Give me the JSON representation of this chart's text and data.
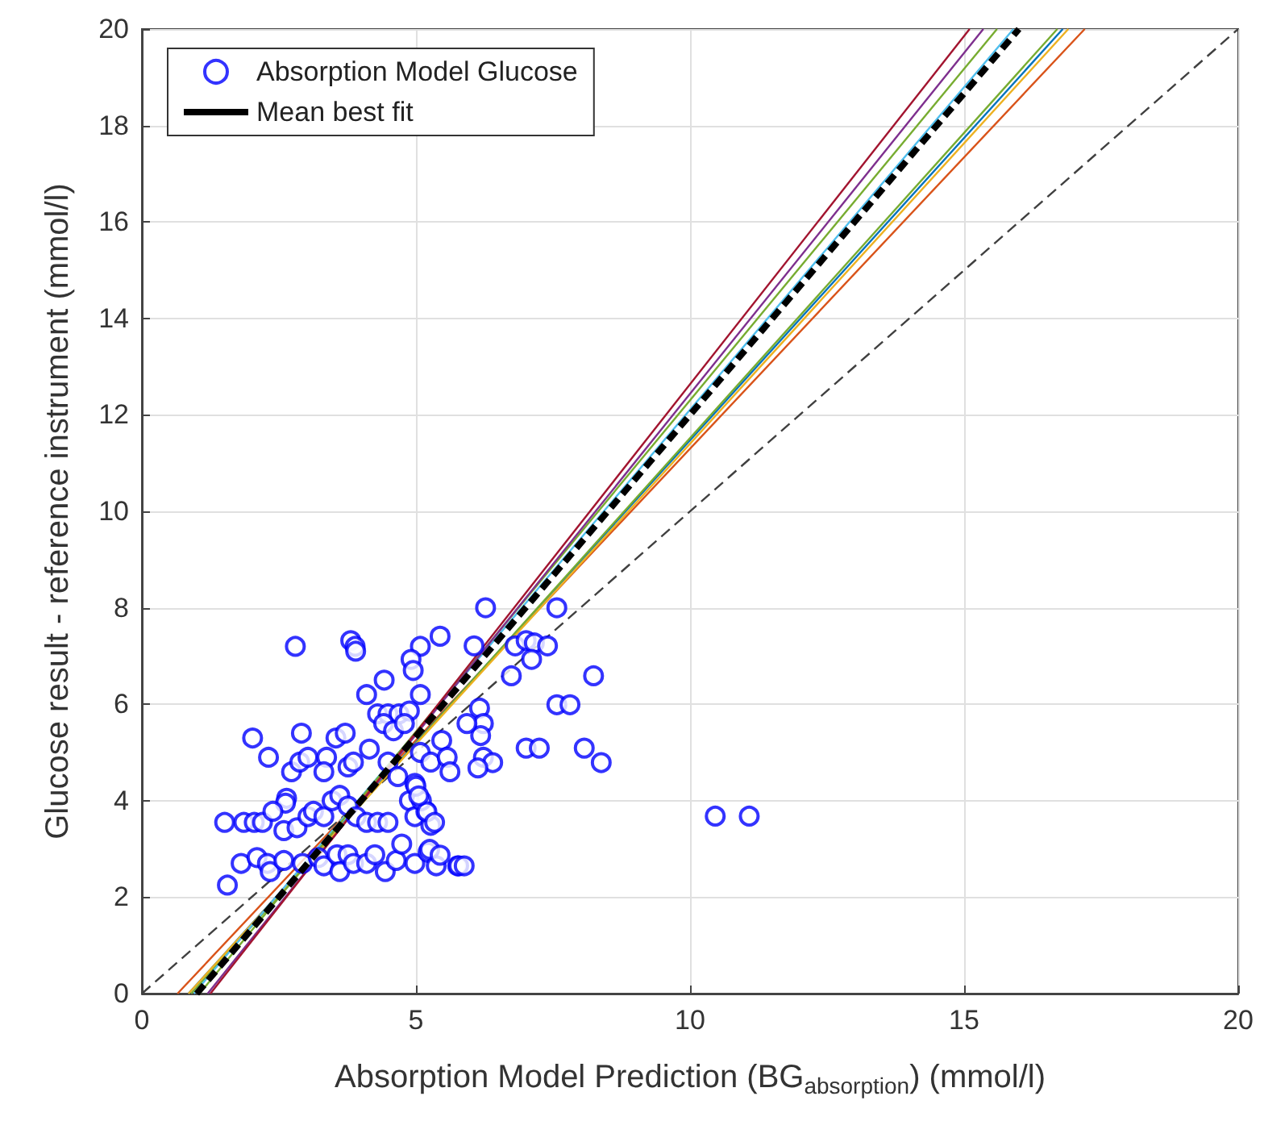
{
  "chart_data": {
    "type": "scatter",
    "xlabel": "Absorption Model Prediction (BG$_{absorption}$) (mmol/l)",
    "ylabel": "Glucose result - reference instrument (mmol/l)",
    "xlim": [
      0,
      20
    ],
    "xticks": [
      0,
      5,
      10,
      15,
      20
    ],
    "ylim": [
      0,
      20
    ],
    "yticks": [
      0,
      2,
      4,
      6,
      8,
      10,
      12,
      14,
      16,
      18,
      20
    ],
    "grid": true,
    "legend": "top left",
    "series": [
      {
        "name": "Absorption Model Glucose",
        "marker": "circle",
        "color": "#0000ff",
        "x": [
          2.8,
          3.81,
          3.89,
          3.9,
          5.44,
          5.08,
          4.91,
          4.95,
          4.42,
          4.1,
          5.08,
          4.3,
          4.49,
          4.69,
          4.88,
          4.41,
          4.59,
          4.79,
          2.02,
          2.91,
          3.54,
          3.71,
          2.31,
          2.73,
          2.88,
          3.03,
          3.37,
          3.32,
          3.76,
          3.86,
          4.15,
          4.49,
          4.67,
          4.98,
          5.08,
          5.27,
          5.47,
          2.64,
          2.62,
          1.51,
          1.86,
          2.05,
          2.2,
          2.39,
          2.59,
          2.83,
          3.03,
          3.13,
          3.32,
          3.47,
          3.61,
          3.76,
          3.91,
          4.1,
          4.3,
          4.49,
          4.88,
          4.98,
          5.18,
          5.27,
          1.81,
          2.1,
          2.29,
          2.34,
          2.59,
          2.93,
          3.22,
          3.32,
          3.56,
          3.61,
          3.76,
          3.86,
          4.1,
          4.25,
          4.44,
          4.64,
          4.74,
          4.98,
          5.22,
          5.37,
          5.76,
          1.56,
          5.57,
          5.62,
          6.27,
          7.57,
          6.06,
          6.81,
          7.01,
          7.16,
          7.4,
          7.11,
          6.74,
          8.24,
          6.16,
          6.23,
          6.18,
          7.57,
          7.81,
          7.01,
          7.25,
          8.07,
          8.38,
          6.23,
          6.4,
          6.13,
          10.46,
          11.08,
          5.93,
          5.78,
          5.88,
          5.25,
          5.44,
          5.1,
          5.2,
          5.34,
          5.0,
          5.05
        ],
        "values": [
          7.2,
          7.32,
          7.2,
          7.1,
          7.41,
          7.2,
          6.93,
          6.7,
          6.5,
          6.2,
          6.2,
          5.8,
          5.8,
          5.8,
          5.86,
          5.6,
          5.45,
          5.6,
          5.3,
          5.4,
          5.3,
          5.4,
          4.9,
          4.6,
          4.8,
          4.9,
          4.9,
          4.6,
          4.7,
          4.8,
          5.07,
          4.8,
          4.5,
          4.36,
          5.0,
          4.8,
          5.25,
          4.05,
          3.95,
          3.55,
          3.55,
          3.55,
          3.55,
          3.78,
          3.38,
          3.44,
          3.67,
          3.78,
          3.67,
          4.0,
          4.11,
          3.89,
          3.67,
          3.55,
          3.55,
          3.55,
          4.0,
          3.67,
          3.78,
          3.49,
          2.7,
          2.82,
          2.7,
          2.53,
          2.76,
          2.7,
          2.82,
          2.65,
          2.88,
          2.53,
          2.88,
          2.7,
          2.7,
          2.88,
          2.53,
          2.76,
          3.1,
          2.7,
          2.93,
          2.65,
          2.65,
          2.25,
          4.9,
          4.6,
          8.0,
          8.0,
          7.21,
          7.21,
          7.32,
          7.27,
          7.21,
          6.93,
          6.59,
          6.59,
          5.92,
          5.6,
          5.35,
          5.99,
          5.99,
          5.09,
          5.09,
          5.09,
          4.79,
          4.9,
          4.79,
          4.68,
          3.68,
          3.68,
          5.6,
          2.65,
          2.65,
          2.99,
          2.87,
          4.0,
          3.77,
          3.55,
          4.3,
          4.1
        ]
      },
      {
        "type": "line",
        "line_style": "dashed",
        "color": "#404040",
        "x": [
          0,
          20
        ],
        "values": [
          0,
          20
        ]
      },
      {
        "type": "line",
        "line_style": "solid",
        "color": "#d95319",
        "x": [
          0.65,
          17.2
        ],
        "values": [
          0,
          20
        ]
      },
      {
        "type": "line",
        "line_style": "solid",
        "color": "#0072bd",
        "x": [
          0.85,
          16.8
        ],
        "values": [
          0,
          20
        ]
      },
      {
        "type": "line",
        "line_style": "solid",
        "color": "#77ac30",
        "x": [
          0.9,
          16.7
        ],
        "values": [
          0,
          20
        ]
      },
      {
        "type": "line",
        "line_style": "solid",
        "color": "#edb120",
        "x": [
          0.85,
          16.9
        ],
        "values": [
          0,
          20
        ]
      },
      {
        "type": "line",
        "line_style": "solid",
        "color": "#4dbeee",
        "x": [
          0.95,
          15.9
        ],
        "values": [
          0,
          20
        ]
      },
      {
        "type": "line",
        "line_style": "solid",
        "color": "#77ac30",
        "x": [
          1.05,
          15.6
        ],
        "values": [
          0,
          20
        ]
      },
      {
        "type": "line",
        "line_style": "solid",
        "color": "#7e2f8e",
        "x": [
          1.2,
          15.35
        ],
        "values": [
          0,
          20
        ]
      },
      {
        "type": "line",
        "line_style": "solid",
        "color": "#a2142f",
        "x": [
          1.25,
          15.1
        ],
        "values": [
          0,
          20
        ]
      },
      {
        "name": "Mean best fit",
        "type": "line",
        "marker": "none",
        "line_style": "dashed",
        "color": "#000000",
        "x": [
          1.0,
          16.0
        ],
        "values": [
          0,
          20
        ]
      }
    ]
  }
}
